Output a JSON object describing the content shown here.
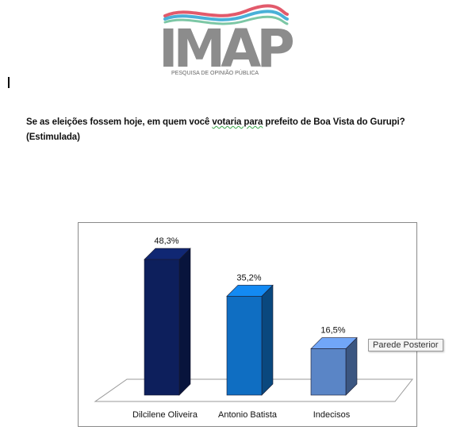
{
  "logo": {
    "word": "IMAP",
    "tagline": "PESQUISA DE OPINIÃO PÚBLICA"
  },
  "question": {
    "part1": "Se as eleições fossem hoje, em quem você ",
    "underlined": "votaria para",
    "part2": " prefeito de Boa Vista do Gurupi?",
    "line2": "(Estimulada)"
  },
  "tooltip": "Parede Posterior",
  "chart_data": {
    "type": "bar",
    "categories": [
      "Dilcilene Oliveira",
      "Antonio Batista",
      "Indecisos"
    ],
    "values": [
      48.3,
      35.2,
      16.5
    ],
    "value_labels": [
      "48,3%",
      "35,2%",
      "16,5%"
    ],
    "colors": [
      "#0d1f5c",
      "#0f6ec2",
      "#5a85c6"
    ],
    "title": "",
    "xlabel": "",
    "ylabel": "",
    "ylim": [
      0,
      50
    ],
    "grid": false,
    "legend": "none"
  }
}
